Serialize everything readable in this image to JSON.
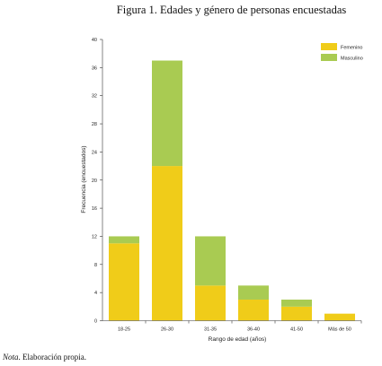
{
  "figure": {
    "title": "Figura 1. Edades y género de personas encuestadas",
    "note_label": "Nota",
    "note_text": ". Elaboración propia."
  },
  "chart_data": {
    "type": "bar",
    "stacked": true,
    "categories": [
      "18-25",
      "26-30",
      "31-35",
      "36-40",
      "41-50",
      "Más de 50"
    ],
    "series": [
      {
        "name": "Femenino",
        "color": "#f0cc19",
        "values": [
          11,
          22,
          5,
          3,
          2,
          1
        ]
      },
      {
        "name": "Masculino",
        "color": "#a9cb52",
        "values": [
          1,
          15,
          7,
          2,
          1,
          0
        ]
      }
    ],
    "xlabel": "Rango de edad (años)",
    "ylabel": "Frecuencia (encuestados)",
    "ylim": [
      0,
      40
    ],
    "yticks": [
      0,
      4,
      8,
      12,
      16,
      20,
      24,
      28,
      32,
      36,
      40
    ],
    "grid": false,
    "legend": "top-right"
  }
}
